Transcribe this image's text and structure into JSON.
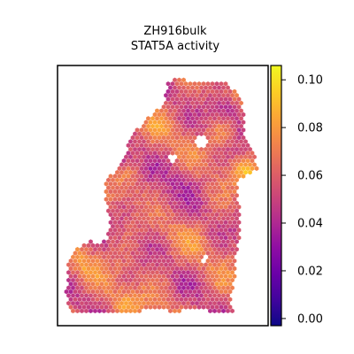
{
  "chart_data": {
    "type": "heatmap",
    "title_lines": [
      "ZH916bulk",
      "STAT5A activity"
    ],
    "xlabel": "",
    "ylabel": "",
    "x_ticks_shown": false,
    "y_ticks_shown": false,
    "colormap": "plasma",
    "colorbar": {
      "range": [
        -0.003,
        0.106
      ],
      "ticks": [
        0.0,
        0.02,
        0.04,
        0.06,
        0.08,
        0.1
      ],
      "tick_labels": [
        "0.00",
        "0.02",
        "0.04",
        "0.06",
        "0.08",
        "0.10"
      ],
      "placement": "right"
    },
    "colormap_stops": [
      "#0d0887",
      "#41049d",
      "#6a00a8",
      "#8f0da4",
      "#b12a90",
      "#cc4778",
      "#e16462",
      "#f2844b",
      "#fca636",
      "#fcce25",
      "#f0f921"
    ],
    "marker_shape": "hexagon",
    "point_count_note": "spatial spots forming tissue section",
    "value_summary": {
      "typical": 0.06,
      "low_patches": 0.03,
      "minimum": 0.0,
      "maximum": 0.105
    }
  }
}
